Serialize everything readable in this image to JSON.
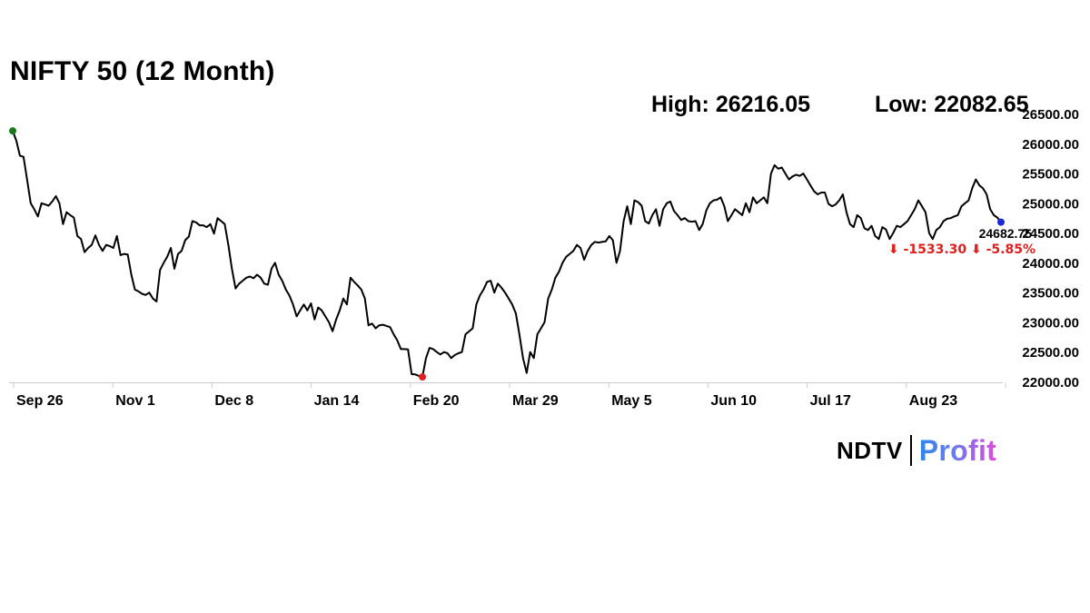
{
  "header": {
    "title": "NIFTY 50 (12 Month)",
    "high_label": "High: 26216.05",
    "low_label": "Low: 22082.65"
  },
  "logo": {
    "brand": "NDTV",
    "product": "Profit"
  },
  "colors": {
    "line": "#000000",
    "start_marker": "#1a7a1a",
    "low_marker": "#e02020",
    "end_marker": "#1a2bd6",
    "change": "#e02020",
    "axis": "#cccccc"
  },
  "chart_data": {
    "type": "line",
    "title": "NIFTY 50 (12 Month)",
    "xlabel": "",
    "ylabel": "",
    "ylim": [
      22000,
      26500
    ],
    "y_ticks": [
      "22000.00",
      "22500.00",
      "23000.00",
      "23500.00",
      "24000.00",
      "24500.00",
      "25000.00",
      "25500.00",
      "26000.00",
      "26500.00"
    ],
    "x_ticks": [
      "Sep 26",
      "Nov 1",
      "Dec 8",
      "Jan 14",
      "Feb 20",
      "Mar 29",
      "May 5",
      "Jun 10",
      "Jul 17",
      "Aug 23"
    ],
    "grid": false,
    "high": 26216.05,
    "low": 22082.65,
    "last_value": "24682.75",
    "change_text": "⬇ -1533.30 ⬇ -5.85%",
    "series": [
      {
        "values": [
          26216,
          26050,
          25800,
          25780,
          25400,
          25000,
          24900,
          24780,
          25000,
          24980,
          24960,
          25030,
          25120,
          25000,
          24650,
          24850,
          24800,
          24760,
          24450,
          24400,
          24180,
          24250,
          24300,
          24460,
          24300,
          24200,
          24300,
          24280,
          24250,
          24450,
          24130,
          24150,
          24140,
          23800,
          23550,
          23520,
          23480,
          23460,
          23500,
          23400,
          23350,
          23880,
          24000,
          24100,
          24250,
          23900,
          24150,
          24200,
          24380,
          24440,
          24700,
          24680,
          24630,
          24630,
          24600,
          24650,
          24490,
          24750,
          24700,
          24650,
          24300,
          23900,
          23570,
          23650,
          23700,
          23750,
          23770,
          23740,
          23800,
          23750,
          23650,
          23630,
          23900,
          24000,
          23800,
          23700,
          23550,
          23450,
          23300,
          23100,
          23200,
          23300,
          23200,
          23320,
          23050,
          23250,
          23200,
          23100,
          23000,
          22850,
          23050,
          23200,
          23400,
          23300,
          23750,
          23680,
          23620,
          23550,
          23400,
          22950,
          22980,
          22900,
          22950,
          22960,
          22940,
          22920,
          22800,
          22700,
          22550,
          22550,
          22545,
          22130,
          22125,
          22100,
          22083,
          22400,
          22570,
          22550,
          22500,
          22460,
          22500,
          22480,
          22400,
          22450,
          22480,
          22500,
          22800,
          22850,
          22900,
          23300,
          23450,
          23550,
          23680,
          23700,
          23500,
          23650,
          23580,
          23500,
          23400,
          23300,
          23150,
          22800,
          22400,
          22150,
          22500,
          22400,
          22800,
          22900,
          23000,
          23400,
          23550,
          23750,
          23850,
          24000,
          24100,
          24150,
          24200,
          24300,
          24250,
          24050,
          24200,
          24300,
          24350,
          24340,
          24350,
          24360,
          24450,
          24380,
          24000,
          24200,
          24700,
          24950,
          24650,
          25050,
          25020,
          24960,
          24700,
          24660,
          24800,
          24900,
          24620,
          24900,
          25000,
          25030,
          24870,
          24800,
          24720,
          24750,
          24700,
          24690,
          24700,
          24550,
          24650,
          24880,
          25000,
          25050,
          25060,
          25100,
          24950,
          24700,
          24800,
          24900,
          24850,
          24800,
          25000,
          24850,
          25100,
          25000,
          25050,
          25100,
          25000,
          25500,
          25640,
          25580,
          25600,
          25500,
          25400,
          25450,
          25480,
          25460,
          25500,
          25400,
          25300,
          25200,
          25150,
          25180,
          25180,
          24990,
          24950,
          24980,
          25050,
          25150,
          24850,
          24650,
          24600,
          24800,
          24750,
          24580,
          24550,
          24620,
          24450,
          24400,
          24600,
          24560,
          24400,
          24500,
          24620,
          24600,
          24650,
          24700,
          24800,
          24900,
          25050,
          24950,
          24850,
          24500,
          24400,
          24550,
          24600,
          24700,
          24740,
          24750,
          24780,
          24800,
          24950,
          25000,
          25050,
          25250,
          25400,
          25300,
          25250,
          25150,
          24900,
          24800,
          24760,
          24682.75
        ]
      }
    ]
  }
}
